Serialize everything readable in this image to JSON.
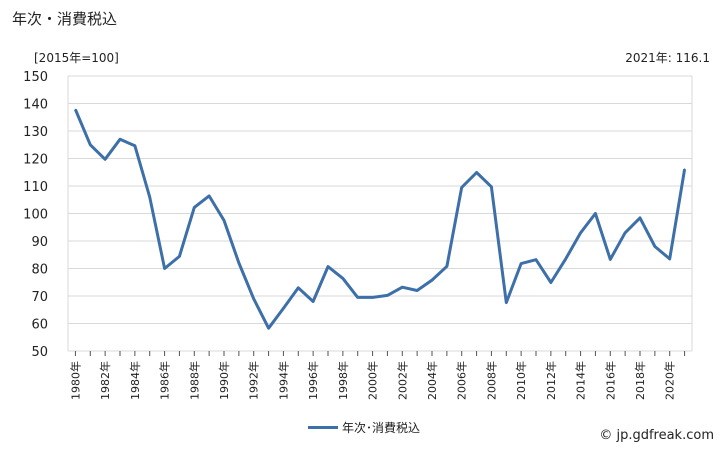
{
  "header": {
    "title": "年次・消費税込",
    "unit": "[2015年=100]",
    "latest": "2021年: 116.1"
  },
  "legend": {
    "label": "年次･消費税込"
  },
  "credit": "© jp.gdfreak.com",
  "colors": {
    "series": "#3d6fa8",
    "grid": "#d9d9d9",
    "axis": "#555555"
  },
  "chart_data": {
    "type": "line",
    "ylim": [
      50,
      150
    ],
    "yticks": [
      50,
      60,
      70,
      80,
      90,
      100,
      110,
      120,
      130,
      140,
      150
    ],
    "x": [
      1980,
      1981,
      1982,
      1983,
      1984,
      1985,
      1986,
      1987,
      1988,
      1989,
      1990,
      1991,
      1992,
      1993,
      1994,
      1995,
      1996,
      1997,
      1998,
      1999,
      2000,
      2001,
      2002,
      2003,
      2004,
      2005,
      2006,
      2007,
      2008,
      2009,
      2010,
      2011,
      2012,
      2013,
      2014,
      2015,
      2016,
      2017,
      2018,
      2019,
      2020,
      2021
    ],
    "xtick_labels": [
      "1980年",
      "1982年",
      "1984年",
      "1986年",
      "1988年",
      "1990年",
      "1992年",
      "1994年",
      "1996年",
      "1998年",
      "2000年",
      "2002年",
      "2004年",
      "2006年",
      "2008年",
      "2010年",
      "2012年",
      "2014年",
      "2016年",
      "2018年",
      "2020年"
    ],
    "xtick_years": [
      1980,
      1982,
      1984,
      1986,
      1988,
      1990,
      1992,
      1994,
      1996,
      1998,
      2000,
      2002,
      2004,
      2006,
      2008,
      2010,
      2012,
      2014,
      2016,
      2018,
      2020
    ],
    "series": [
      {
        "name": "年次･消費税込",
        "values": [
          137.8,
          125.0,
          119.7,
          127.0,
          124.6,
          106.0,
          80.0,
          84.4,
          102.2,
          106.4,
          97.5,
          82.0,
          69.0,
          58.3,
          65.5,
          73.0,
          68.0,
          80.7,
          76.4,
          69.5,
          69.5,
          70.2,
          73.2,
          72.0,
          75.8,
          80.8,
          109.5,
          114.9,
          109.7,
          67.6,
          81.8,
          83.2,
          74.9,
          83.5,
          93.0,
          100.0,
          83.3,
          93.0,
          98.4,
          88.0,
          83.5,
          116.1
        ]
      }
    ]
  }
}
